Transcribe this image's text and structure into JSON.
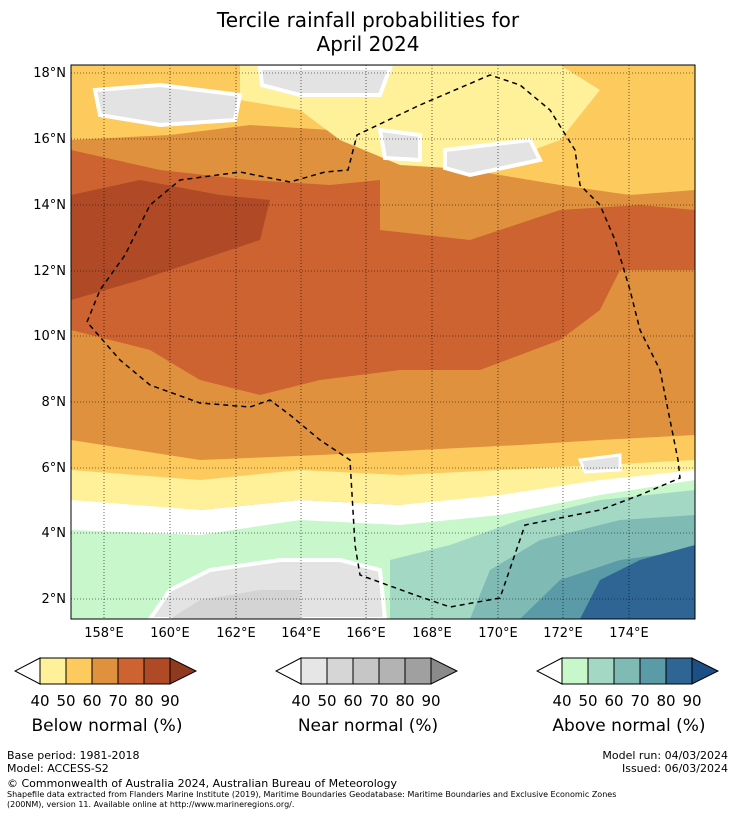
{
  "title": {
    "line1": "Tercile rainfall probabilities for",
    "line2": "April 2024"
  },
  "map": {
    "lat_labels": [
      "18°N",
      "16°N",
      "14°N",
      "12°N",
      "10°N",
      "8°N",
      "6°N",
      "4°N",
      "2°N"
    ],
    "lon_labels": [
      "158°E",
      "160°E",
      "162°E",
      "164°E",
      "166°E",
      "168°E",
      "170°E",
      "172°E",
      "174°E"
    ],
    "lat_range": [
      1.5,
      18.4
    ],
    "lon_range": [
      157.0,
      176.0
    ]
  },
  "legends": {
    "below": {
      "title": "Below normal (%)",
      "ticks": [
        "40",
        "50",
        "60",
        "70",
        "80",
        "90"
      ],
      "colors": [
        "#fff09a",
        "#fdca5e",
        "#e0913e",
        "#cc6330",
        "#b04a26",
        "#8f3a1e"
      ]
    },
    "near": {
      "title": "Near normal (%)",
      "ticks": [
        "40",
        "50",
        "60",
        "70",
        "80",
        "90"
      ],
      "colors": [
        "#e6e6e6",
        "#d6d6d6",
        "#c6c6c6",
        "#b3b3b3",
        "#a0a0a0",
        "#8a8a8a"
      ]
    },
    "above": {
      "title": "Above normal (%)",
      "ticks": [
        "40",
        "50",
        "60",
        "70",
        "80",
        "90"
      ],
      "colors": [
        "#c8f7cc",
        "#a3d9c4",
        "#7fbab5",
        "#5a9ba7",
        "#2f6594",
        "#1d4f87"
      ]
    }
  },
  "footer": {
    "base_period": "Base period: 1981-2018",
    "model": "Model: ACCESS-S2",
    "model_run": "Model run: 04/03/2024",
    "issued": "Issued: 06/03/2024",
    "copyright": "© Commonwealth of Australia 2024, Australian Bureau of Meteorology",
    "shapefile_line1": "Shapefile data extracted from Flanders Marine Institute (2019), Maritime Boundaries Geodatabase: Maritime Boundaries and Exclusive Economic Zones",
    "shapefile_line2": "(200NM), version 11. Available online at http://www.marineregions.org/."
  }
}
